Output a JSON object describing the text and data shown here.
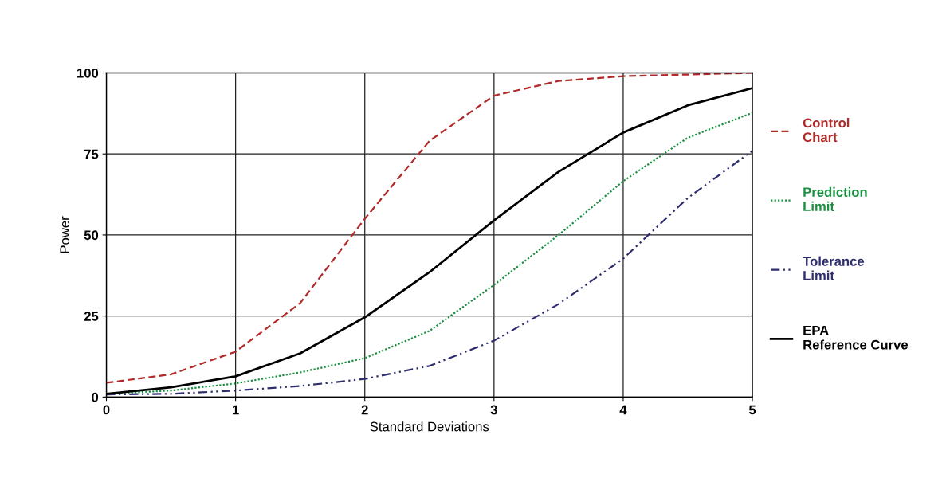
{
  "chart_data": {
    "type": "line",
    "xlabel": "Standard Deviations",
    "ylabel": "Power",
    "x": [
      0,
      0.5,
      1,
      1.5,
      2,
      2.5,
      3,
      3.5,
      4,
      4.5,
      5
    ],
    "xlim": [
      0,
      5
    ],
    "xticks": [
      0,
      1,
      2,
      3,
      4,
      5
    ],
    "ylim": [
      0,
      100
    ],
    "yticks": [
      0,
      25,
      50,
      75,
      100
    ],
    "grid": true,
    "legend": "right",
    "series": [
      {
        "name": "Control Chart",
        "color": "#b22a2a",
        "line_style": "dashed",
        "values": [
          4.4,
          7,
          14,
          29,
          55,
          79,
          93,
          97.5,
          99,
          99.5,
          100
        ]
      },
      {
        "name": "Prediction Limit",
        "color": "#1a9040",
        "line_style": "dotted",
        "values": [
          1,
          2,
          4.2,
          7.6,
          12,
          20.4,
          34.6,
          50,
          66.6,
          80,
          87.7
        ]
      },
      {
        "name": "Tolerance Limit",
        "color": "#2e2e6e",
        "line_style": "dashdot",
        "values": [
          0.8,
          1,
          2,
          3.4,
          5.6,
          9.6,
          17.4,
          28.7,
          42.7,
          61.4,
          76
        ]
      },
      {
        "name": "EPA Reference Curve",
        "color": "#000000",
        "line_style": "solid",
        "values": [
          1,
          3,
          6.4,
          13.5,
          24.6,
          38.5,
          54.5,
          69.5,
          81.6,
          90,
          95.3
        ]
      }
    ]
  }
}
